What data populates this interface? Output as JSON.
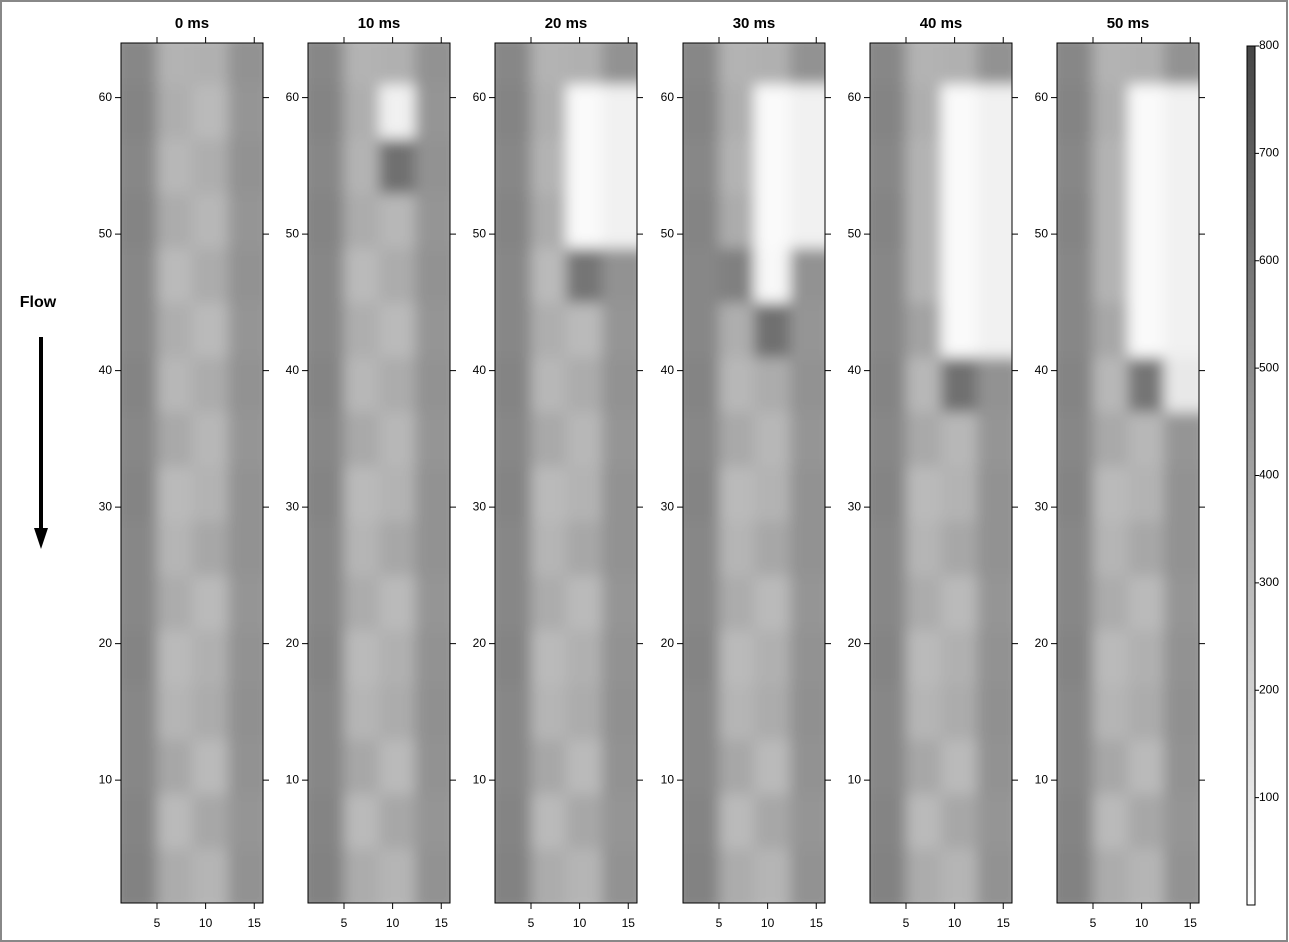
{
  "chart_data": {
    "type": "heatmap",
    "annotation": "Flow",
    "xlim": [
      1.3,
      15.9
    ],
    "ylim": [
      1,
      64
    ],
    "xticks": [
      5,
      10,
      15
    ],
    "yticks": [
      10,
      20,
      30,
      40,
      50,
      60
    ],
    "x_bins": [
      1.3,
      5,
      8.6,
      12.3,
      15.9
    ],
    "y_bins": [
      1,
      5,
      9,
      13,
      17,
      21,
      25,
      29,
      33,
      37,
      41,
      45,
      49,
      53,
      57,
      61,
      64
    ],
    "colorbar": {
      "lim": [
        0,
        800
      ],
      "ticks": [
        100,
        200,
        300,
        400,
        500,
        600,
        700,
        800
      ]
    },
    "panels": [
      {
        "title": "0 ms",
        "z": [
          [
            540,
            360,
            320,
            470
          ],
          [
            530,
            300,
            380,
            460
          ],
          [
            520,
            380,
            300,
            470
          ],
          [
            520,
            320,
            360,
            480
          ],
          [
            530,
            300,
            340,
            470
          ],
          [
            520,
            360,
            300,
            460
          ],
          [
            520,
            320,
            380,
            470
          ],
          [
            530,
            300,
            330,
            470
          ],
          [
            520,
            370,
            310,
            460
          ],
          [
            530,
            310,
            360,
            470
          ],
          [
            520,
            350,
            300,
            460
          ],
          [
            520,
            300,
            360,
            470
          ],
          [
            530,
            360,
            310,
            460
          ],
          [
            520,
            310,
            350,
            470
          ],
          [
            530,
            350,
            300,
            460
          ],
          [
            520,
            330,
            340,
            470
          ]
        ]
      },
      {
        "title": "10 ms",
        "z": [
          [
            540,
            360,
            320,
            470
          ],
          [
            530,
            300,
            380,
            460
          ],
          [
            520,
            380,
            300,
            470
          ],
          [
            520,
            320,
            360,
            480
          ],
          [
            530,
            300,
            340,
            470
          ],
          [
            520,
            360,
            300,
            460
          ],
          [
            520,
            320,
            380,
            470
          ],
          [
            530,
            300,
            330,
            470
          ],
          [
            520,
            370,
            310,
            460
          ],
          [
            530,
            310,
            360,
            470
          ],
          [
            520,
            350,
            300,
            460
          ],
          [
            520,
            300,
            360,
            470
          ],
          [
            530,
            360,
            310,
            460
          ],
          [
            520,
            330,
            620,
            470
          ],
          [
            530,
            350,
            60,
            460
          ],
          [
            520,
            330,
            340,
            470
          ]
        ]
      },
      {
        "title": "20 ms",
        "z": [
          [
            540,
            360,
            320,
            470
          ],
          [
            530,
            300,
            380,
            460
          ],
          [
            520,
            380,
            300,
            470
          ],
          [
            520,
            320,
            360,
            480
          ],
          [
            530,
            300,
            340,
            470
          ],
          [
            520,
            360,
            300,
            460
          ],
          [
            520,
            320,
            380,
            470
          ],
          [
            530,
            300,
            330,
            470
          ],
          [
            520,
            370,
            310,
            460
          ],
          [
            530,
            310,
            360,
            470
          ],
          [
            520,
            350,
            300,
            460
          ],
          [
            520,
            300,
            600,
            470
          ],
          [
            530,
            360,
            20,
            60
          ],
          [
            520,
            330,
            20,
            60
          ],
          [
            530,
            350,
            20,
            60
          ],
          [
            520,
            330,
            340,
            470
          ]
        ]
      },
      {
        "title": "30 ms",
        "z": [
          [
            540,
            360,
            320,
            470
          ],
          [
            530,
            300,
            380,
            460
          ],
          [
            520,
            380,
            300,
            470
          ],
          [
            520,
            320,
            360,
            480
          ],
          [
            530,
            300,
            340,
            470
          ],
          [
            520,
            360,
            300,
            460
          ],
          [
            520,
            320,
            380,
            470
          ],
          [
            530,
            300,
            330,
            470
          ],
          [
            520,
            370,
            310,
            460
          ],
          [
            530,
            310,
            360,
            470
          ],
          [
            520,
            350,
            620,
            460
          ],
          [
            520,
            550,
            30,
            470
          ],
          [
            530,
            360,
            20,
            60
          ],
          [
            520,
            330,
            20,
            60
          ],
          [
            530,
            350,
            20,
            60
          ],
          [
            520,
            330,
            340,
            470
          ]
        ]
      },
      {
        "title": "40 ms",
        "z": [
          [
            540,
            360,
            320,
            470
          ],
          [
            530,
            300,
            380,
            460
          ],
          [
            520,
            380,
            300,
            470
          ],
          [
            520,
            320,
            360,
            480
          ],
          [
            530,
            300,
            340,
            470
          ],
          [
            520,
            360,
            300,
            460
          ],
          [
            520,
            320,
            380,
            470
          ],
          [
            530,
            300,
            330,
            470
          ],
          [
            520,
            370,
            310,
            460
          ],
          [
            530,
            310,
            620,
            470
          ],
          [
            520,
            400,
            20,
            60
          ],
          [
            520,
            330,
            20,
            60
          ],
          [
            530,
            330,
            20,
            60
          ],
          [
            520,
            330,
            20,
            60
          ],
          [
            530,
            350,
            20,
            60
          ],
          [
            520,
            330,
            340,
            470
          ]
        ]
      },
      {
        "title": "50 ms",
        "z": [
          [
            540,
            360,
            320,
            470
          ],
          [
            530,
            300,
            380,
            460
          ],
          [
            520,
            380,
            300,
            470
          ],
          [
            520,
            320,
            360,
            480
          ],
          [
            530,
            300,
            340,
            470
          ],
          [
            520,
            360,
            300,
            460
          ],
          [
            520,
            320,
            380,
            470
          ],
          [
            530,
            300,
            330,
            470
          ],
          [
            520,
            370,
            310,
            460
          ],
          [
            530,
            310,
            600,
            100
          ],
          [
            520,
            380,
            20,
            60
          ],
          [
            520,
            330,
            20,
            60
          ],
          [
            530,
            330,
            20,
            60
          ],
          [
            520,
            330,
            20,
            60
          ],
          [
            530,
            350,
            20,
            60
          ],
          [
            520,
            330,
            340,
            470
          ]
        ]
      }
    ]
  }
}
